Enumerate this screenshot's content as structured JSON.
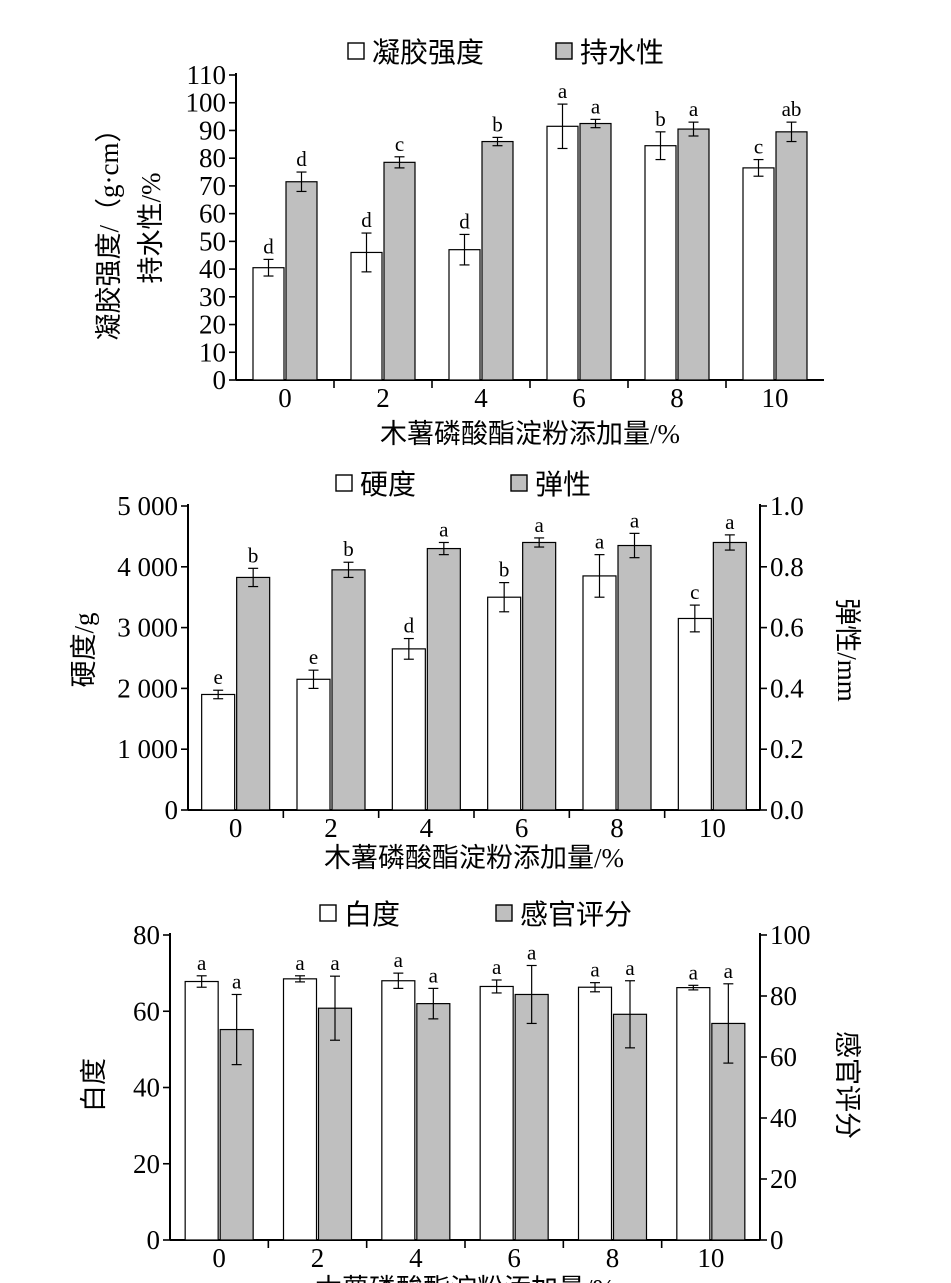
{
  "chart_data": [
    {
      "type": "bar",
      "categories": [
        "0",
        "2",
        "4",
        "6",
        "8",
        "10"
      ],
      "xlabel": "木薯磷酸酯淀粉添加量/%",
      "ylabel": "凝胶强度/（g·cm）\n持水性/%",
      "ylim": [
        0,
        110
      ],
      "yticks": [
        "0",
        "10",
        "20",
        "30",
        "40",
        "50",
        "60",
        "70",
        "80",
        "90",
        "100",
        "110"
      ],
      "legend_position": "top",
      "series": [
        {
          "name": "凝胶强度",
          "fill": "#ffffff",
          "axis": "left",
          "values": [
            40.5,
            46,
            47,
            91.5,
            84.5,
            76.5
          ],
          "errors": [
            3,
            7,
            5.5,
            8,
            5,
            3
          ],
          "labels": [
            "d",
            "d",
            "d",
            "a",
            "b",
            "c"
          ]
        },
        {
          "name": "持水性",
          "fill": "#bfbfbf",
          "axis": "left",
          "values": [
            71.5,
            78.5,
            86,
            92.5,
            90.5,
            89.5
          ],
          "errors": [
            3.5,
            2,
            1.5,
            1.5,
            2.5,
            3.5
          ],
          "labels": [
            "d",
            "c",
            "b",
            "a",
            "a",
            "ab"
          ]
        }
      ]
    },
    {
      "type": "bar",
      "categories": [
        "0",
        "2",
        "4",
        "6",
        "8",
        "10"
      ],
      "xlabel": "木薯磷酸酯淀粉添加量/%",
      "ylabel": "硬度/g",
      "y2label": "弹性/mm",
      "ylim": [
        0,
        5000
      ],
      "y2lim": [
        0,
        1.0
      ],
      "yticks": [
        "0",
        "1 000",
        "2 000",
        "3 000",
        "4 000",
        "5 000"
      ],
      "y2ticks": [
        "0.0",
        "0.2",
        "0.4",
        "0.6",
        "0.8",
        "1.0"
      ],
      "legend_position": "top",
      "series": [
        {
          "name": "硬度",
          "fill": "#ffffff",
          "axis": "left",
          "values": [
            1900,
            2150,
            2650,
            3500,
            3850,
            3150
          ],
          "errors": [
            70,
            150,
            170,
            240,
            350,
            220
          ],
          "labels": [
            "e",
            "e",
            "d",
            "b",
            "a",
            "c"
          ]
        },
        {
          "name": "弹性",
          "fill": "#bfbfbf",
          "axis": "right",
          "values": [
            0.765,
            0.79,
            0.86,
            0.88,
            0.87,
            0.88
          ],
          "errors": [
            0.03,
            0.025,
            0.02,
            0.015,
            0.04,
            0.025
          ],
          "labels": [
            "b",
            "b",
            "a",
            "a",
            "a",
            "a"
          ]
        }
      ]
    },
    {
      "type": "bar",
      "categories": [
        "0",
        "2",
        "4",
        "6",
        "8",
        "10"
      ],
      "xlabel": "木薯磷酸酯淀粉添加量/%",
      "ylabel": "白度",
      "y2label": "感官评分",
      "ylim": [
        0,
        80
      ],
      "y2lim": [
        0,
        100
      ],
      "yticks": [
        "0",
        "20",
        "40",
        "60",
        "80"
      ],
      "y2ticks": [
        "0",
        "20",
        "40",
        "60",
        "80",
        "100"
      ],
      "legend_position": "top",
      "series": [
        {
          "name": "白度",
          "fill": "#ffffff",
          "axis": "left",
          "values": [
            67.8,
            68.5,
            68,
            66.5,
            66.3,
            66.2
          ],
          "errors": [
            1.5,
            0.8,
            2,
            1.7,
            1.2,
            0.6
          ],
          "labels": [
            "a",
            "a",
            "a",
            "a",
            "a",
            "a"
          ]
        },
        {
          "name": "感官评分",
          "fill": "#bfbfbf",
          "axis": "right",
          "values": [
            69,
            76,
            77.5,
            80.5,
            74,
            71
          ],
          "errors": [
            11.5,
            10.5,
            5,
            9.5,
            11,
            13
          ],
          "labels": [
            "a",
            "a",
            "a",
            "a",
            "a",
            "a"
          ]
        }
      ]
    }
  ]
}
